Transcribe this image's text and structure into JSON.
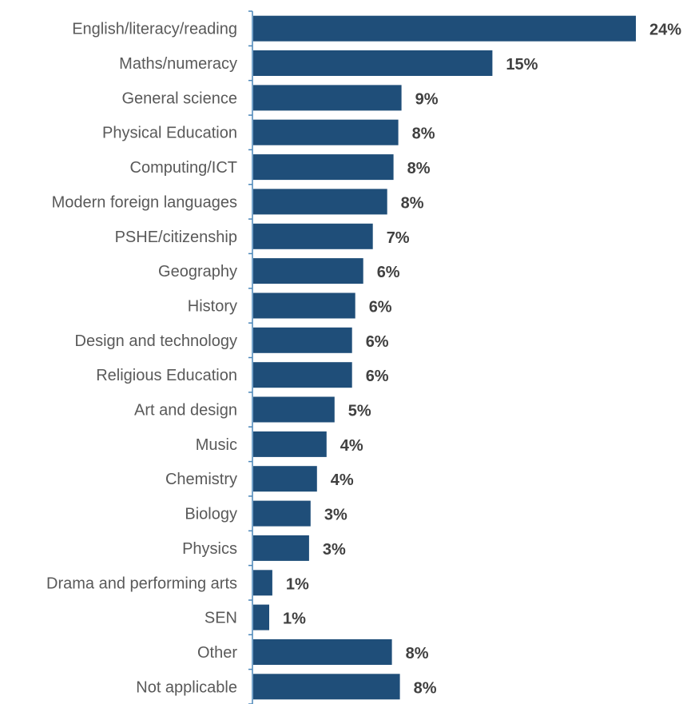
{
  "chart_data": {
    "type": "bar",
    "orientation": "horizontal",
    "categories": [
      "English/literacy/reading",
      "Maths/numeracy",
      "General science",
      "Physical Education",
      "Computing/ICT",
      "Modern foreign languages",
      "PSHE/citizenship",
      "Geography",
      "History",
      "Design and technology",
      "Religious Education",
      "Art and design",
      "Music",
      "Chemistry",
      "Biology",
      "Physics",
      "Drama and performing arts",
      "SEN",
      "Other",
      "Not applicable"
    ],
    "values": [
      24,
      15,
      9,
      8,
      8,
      8,
      7,
      6,
      6,
      6,
      6,
      5,
      4,
      4,
      3,
      3,
      1,
      1,
      8,
      8
    ],
    "estimated_values": [
      24.0,
      15.0,
      9.3,
      9.1,
      8.8,
      8.4,
      7.5,
      6.9,
      6.4,
      6.2,
      6.2,
      5.1,
      4.6,
      4.0,
      3.6,
      3.5,
      1.2,
      1.0,
      8.7,
      9.2
    ],
    "value_labels": [
      "24%",
      "15%",
      "9%",
      "8%",
      "8%",
      "8%",
      "7%",
      "6%",
      "6%",
      "6%",
      "6%",
      "5%",
      "4%",
      "4%",
      "3%",
      "3%",
      "1%",
      "1%",
      "8%",
      "8%"
    ],
    "title": "",
    "xlabel": "",
    "ylabel": "",
    "xlim": [
      0,
      25
    ],
    "grid": false,
    "legend": "none",
    "colors": {
      "bar": "#1f4e79",
      "axis": "#4a86b8",
      "category_text": "#595959",
      "value_text": "#404040"
    }
  }
}
